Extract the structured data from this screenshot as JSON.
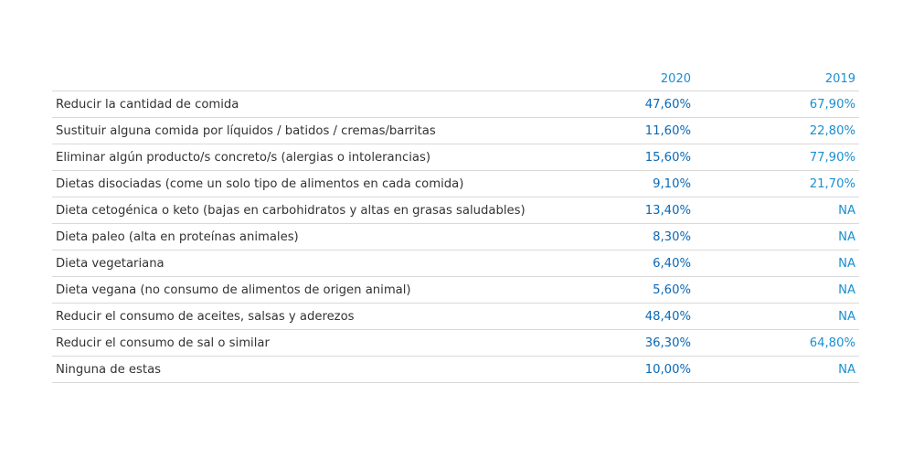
{
  "chart_data": {
    "type": "table",
    "columns": [
      "2020",
      "2019"
    ],
    "rows": [
      {
        "label": "Reducir la cantidad de comida",
        "v2020": "47,60%",
        "v2019": "67,90%"
      },
      {
        "label": "Sustituir alguna comida por líquidos / batidos / cremas/barritas",
        "v2020": "11,60%",
        "v2019": "22,80%"
      },
      {
        "label": "Eliminar algún producto/s concreto/s (alergias o intolerancias)",
        "v2020": "15,60%",
        "v2019": "77,90%"
      },
      {
        "label": "Dietas disociadas (come un solo tipo de alimentos en cada comida)",
        "v2020": "9,10%",
        "v2019": "21,70%"
      },
      {
        "label": "Dieta cetogénica o keto (bajas en carbohidratos y altas en grasas saludables)",
        "v2020": "13,40%",
        "v2019": "NA"
      },
      {
        "label": "Dieta paleo (alta en proteínas animales)",
        "v2020": "8,30%",
        "v2019": "NA"
      },
      {
        "label": "Dieta vegetariana",
        "v2020": "6,40%",
        "v2019": "NA"
      },
      {
        "label": "Dieta vegana (no consumo de alimentos de origen animal)",
        "v2020": "5,60%",
        "v2019": "NA"
      },
      {
        "label": "Reducir el consumo de aceites, salsas y aderezos",
        "v2020": "48,40%",
        "v2019": "NA"
      },
      {
        "label": "Reducir el consumo de sal o similar",
        "v2020": "36,30%",
        "v2019": "64,80%"
      },
      {
        "label": "Ninguna de estas",
        "v2020": "10,00%",
        "v2019": "NA"
      }
    ],
    "colors": {
      "header": "#1a8fd0",
      "value_2020": "#0a68b6",
      "value_2019": "#1a8fd0",
      "label": "#333333",
      "rule": "#d9d9d9"
    }
  }
}
